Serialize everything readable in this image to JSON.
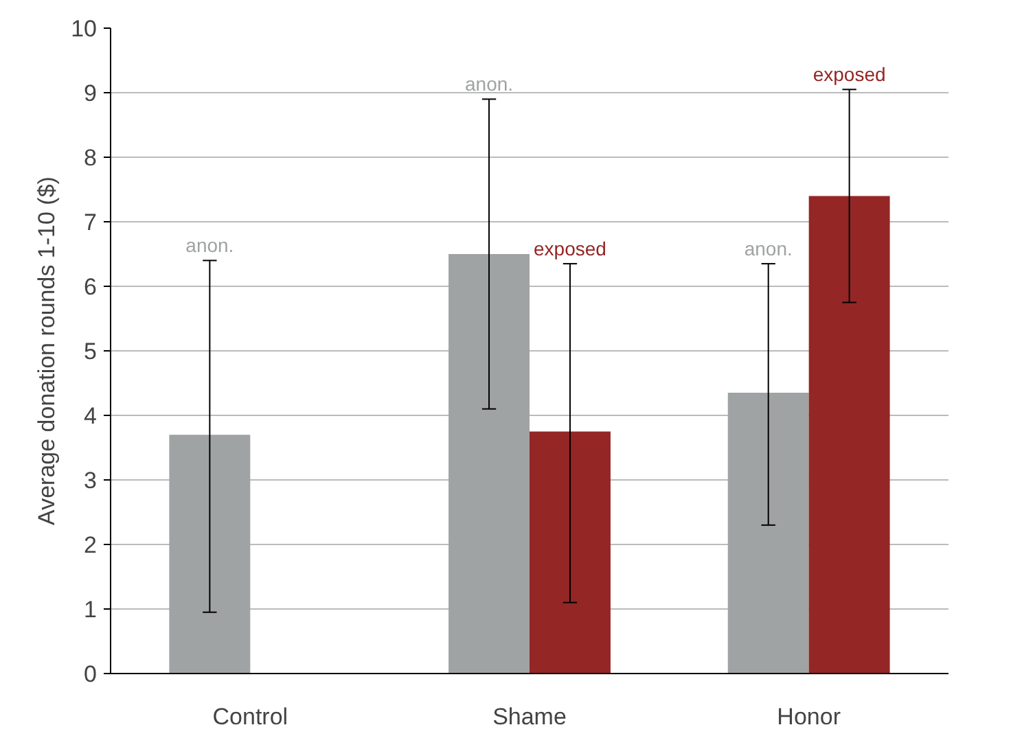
{
  "chart_data": {
    "type": "bar",
    "ylabel": "Average donation rounds 1-10 ($)",
    "categories": [
      "Control",
      "Shame",
      "Honor"
    ],
    "series": [
      {
        "name": "anon.",
        "color": "#a0a3a3",
        "values": [
          3.7,
          6.5,
          4.35
        ],
        "errors": [
          [
            0.95,
            6.4
          ],
          [
            4.1,
            8.9
          ],
          [
            2.3,
            6.35
          ]
        ]
      },
      {
        "name": "exposed",
        "color": "#942626",
        "values": [
          null,
          3.75,
          7.4
        ],
        "errors": [
          null,
          [
            1.1,
            6.35
          ],
          [
            5.75,
            9.05
          ]
        ]
      }
    ],
    "ylim": [
      0,
      10
    ],
    "yticks": [
      0,
      1,
      2,
      3,
      4,
      5,
      6,
      7,
      8,
      9,
      10
    ],
    "grid": "y",
    "legend": false
  }
}
